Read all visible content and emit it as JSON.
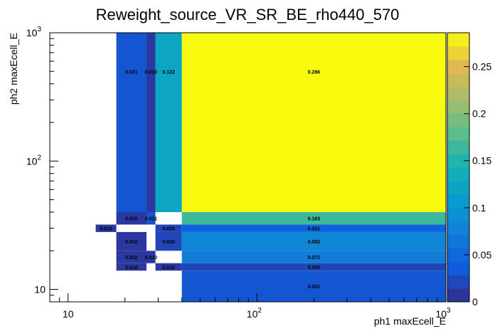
{
  "chart_data": {
    "type": "heatmap",
    "title": "Reweight_source_VR_SR_BE_rho440_570",
    "xlabel": "ph1 maxEcell_E",
    "ylabel": "ph2 maxEcell_E",
    "x_scale": "log",
    "y_scale": "log",
    "xlim": [
      8,
      1000
    ],
    "ylim": [
      8,
      1000
    ],
    "x_ticks": [
      {
        "value": 10,
        "base": "10",
        "exp": ""
      },
      {
        "value": 100,
        "base": "10",
        "exp": "2"
      },
      {
        "value": 1000,
        "base": "10",
        "exp": "3"
      }
    ],
    "y_ticks": [
      {
        "value": 10,
        "base": "10",
        "exp": ""
      },
      {
        "value": 100,
        "base": "10",
        "exp": "2"
      },
      {
        "value": 1000,
        "base": "10",
        "exp": "3"
      }
    ],
    "colorbar": {
      "min": 0,
      "max": 0.286,
      "ticks": [
        "0",
        "0.05",
        "0.1",
        "0.15",
        "0.2",
        "0.25"
      ]
    },
    "cells": [
      {
        "x": [
          18,
          26
        ],
        "y": [
          40,
          1000
        ],
        "value": 0.031,
        "label": "0.031"
      },
      {
        "x": [
          26,
          29
        ],
        "y": [
          40,
          1000
        ],
        "value": 0.01,
        "label": "0.010"
      },
      {
        "x": [
          29,
          40
        ],
        "y": [
          40,
          1000
        ],
        "value": 0.122,
        "label": "0.122"
      },
      {
        "x": [
          40,
          1000
        ],
        "y": [
          40,
          1000
        ],
        "value": 0.286,
        "label": "0.286"
      },
      {
        "x": [
          18,
          26
        ],
        "y": [
          32,
          40
        ],
        "value": 0.01,
        "label": "0.010"
      },
      {
        "x": [
          26,
          29
        ],
        "y": [
          32,
          40
        ],
        "value": 0.031,
        "label": "0.031"
      },
      {
        "x": [
          40,
          1000
        ],
        "y": [
          32,
          40
        ],
        "value": 0.163,
        "label": "0.163"
      },
      {
        "x": [
          14,
          18
        ],
        "y": [
          28,
          32
        ],
        "value": 0.01,
        "label": "0.010"
      },
      {
        "x": [
          29,
          40
        ],
        "y": [
          28,
          32
        ],
        "value": 0.02,
        "label": "0.020"
      },
      {
        "x": [
          40,
          1000
        ],
        "y": [
          28,
          32
        ],
        "value": 0.041,
        "label": "0.041"
      },
      {
        "x": [
          18,
          26
        ],
        "y": [
          20,
          28
        ],
        "value": 0.01,
        "label": "0.010"
      },
      {
        "x": [
          29,
          40
        ],
        "y": [
          20,
          28
        ],
        "value": 0.02,
        "label": "0.020"
      },
      {
        "x": [
          40,
          1000
        ],
        "y": [
          20,
          28
        ],
        "value": 0.082,
        "label": "0.082"
      },
      {
        "x": [
          18,
          26
        ],
        "y": [
          16,
          20
        ],
        "value": 0.01,
        "label": "0.010"
      },
      {
        "x": [
          26,
          29
        ],
        "y": [
          16,
          20
        ],
        "value": 0.01,
        "label": "0.010"
      },
      {
        "x": [
          40,
          1000
        ],
        "y": [
          16,
          20
        ],
        "value": 0.071,
        "label": "0.071"
      },
      {
        "x": [
          18,
          26
        ],
        "y": [
          14,
          16
        ],
        "value": 0.01,
        "label": "0.010"
      },
      {
        "x": [
          29,
          40
        ],
        "y": [
          14,
          16
        ],
        "value": 0.01,
        "label": "0.010"
      },
      {
        "x": [
          40,
          1000
        ],
        "y": [
          14,
          16
        ],
        "value": 0.02,
        "label": "0.020"
      },
      {
        "x": [
          40,
          1000
        ],
        "y": [
          8,
          14
        ],
        "value": 0.031,
        "label": "0.031"
      }
    ]
  }
}
